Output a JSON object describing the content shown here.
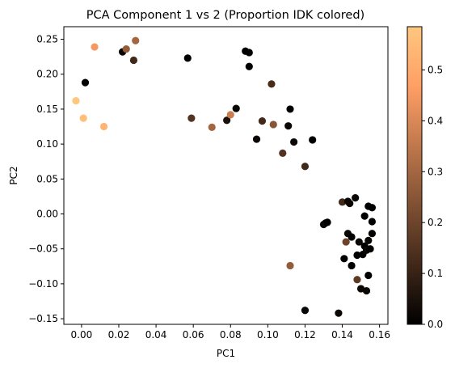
{
  "chart_data": {
    "type": "scatter",
    "title": "PCA Component 1 vs 2 (Proportion IDK colored)",
    "xlabel": "PC1",
    "ylabel": "PC2",
    "xlim": [
      -0.0095,
      0.1645
    ],
    "ylim": [
      -0.158,
      0.268
    ],
    "x_ticks": [
      0.0,
      0.02,
      0.04,
      0.06,
      0.08,
      0.1,
      0.12,
      0.14,
      0.16
    ],
    "x_tick_labels": [
      "0.00",
      "0.02",
      "0.04",
      "0.06",
      "0.08",
      "0.10",
      "0.12",
      "0.14",
      "0.16"
    ],
    "y_ticks": [
      -0.15,
      -0.1,
      -0.05,
      0.0,
      0.05,
      0.1,
      0.15,
      0.2,
      0.25
    ],
    "y_tick_labels": [
      "−0.15",
      "−0.10",
      "−0.05",
      "0.00",
      "0.05",
      "0.10",
      "0.15",
      "0.20",
      "0.25"
    ],
    "grid": false,
    "colormap": "copper",
    "colorbar": {
      "range": [
        0.0,
        0.585
      ],
      "ticks": [
        0.0,
        0.1,
        0.2,
        0.3,
        0.4,
        0.5
      ],
      "tick_labels": [
        "0.0",
        "0.1",
        "0.2",
        "0.3",
        "0.4",
        "0.5"
      ]
    },
    "points": [
      {
        "x": -0.003,
        "y": 0.162,
        "c": 0.58
      },
      {
        "x": 0.001,
        "y": 0.137,
        "c": 0.56
      },
      {
        "x": 0.012,
        "y": 0.125,
        "c": 0.53
      },
      {
        "x": 0.007,
        "y": 0.239,
        "c": 0.45
      },
      {
        "x": 0.002,
        "y": 0.188,
        "c": 0.0
      },
      {
        "x": 0.022,
        "y": 0.232,
        "c": 0.02
      },
      {
        "x": 0.024,
        "y": 0.236,
        "c": 0.27
      },
      {
        "x": 0.028,
        "y": 0.22,
        "c": 0.12
      },
      {
        "x": 0.029,
        "y": 0.248,
        "c": 0.3
      },
      {
        "x": 0.057,
        "y": 0.223,
        "c": 0.0
      },
      {
        "x": 0.059,
        "y": 0.137,
        "c": 0.15
      },
      {
        "x": 0.07,
        "y": 0.124,
        "c": 0.3
      },
      {
        "x": 0.078,
        "y": 0.134,
        "c": 0.05
      },
      {
        "x": 0.08,
        "y": 0.142,
        "c": 0.37
      },
      {
        "x": 0.083,
        "y": 0.151,
        "c": 0.02
      },
      {
        "x": 0.088,
        "y": 0.233,
        "c": 0.0
      },
      {
        "x": 0.09,
        "y": 0.231,
        "c": 0.0
      },
      {
        "x": 0.09,
        "y": 0.211,
        "c": 0.0
      },
      {
        "x": 0.094,
        "y": 0.107,
        "c": 0.02
      },
      {
        "x": 0.097,
        "y": 0.133,
        "c": 0.12
      },
      {
        "x": 0.102,
        "y": 0.186,
        "c": 0.13
      },
      {
        "x": 0.103,
        "y": 0.128,
        "c": 0.25
      },
      {
        "x": 0.108,
        "y": 0.087,
        "c": 0.15
      },
      {
        "x": 0.111,
        "y": 0.126,
        "c": 0.02
      },
      {
        "x": 0.112,
        "y": 0.15,
        "c": 0.0
      },
      {
        "x": 0.114,
        "y": 0.103,
        "c": 0.02
      },
      {
        "x": 0.12,
        "y": 0.068,
        "c": 0.12
      },
      {
        "x": 0.124,
        "y": 0.106,
        "c": 0.0
      },
      {
        "x": 0.112,
        "y": -0.074,
        "c": 0.27
      },
      {
        "x": 0.12,
        "y": -0.138,
        "c": 0.02
      },
      {
        "x": 0.13,
        "y": -0.015,
        "c": 0.02
      },
      {
        "x": 0.131,
        "y": -0.013,
        "c": 0.02
      },
      {
        "x": 0.132,
        "y": -0.012,
        "c": 0.0
      },
      {
        "x": 0.138,
        "y": -0.142,
        "c": 0.02
      },
      {
        "x": 0.14,
        "y": 0.017,
        "c": 0.12
      },
      {
        "x": 0.141,
        "y": -0.064,
        "c": 0.0
      },
      {
        "x": 0.143,
        "y": 0.018,
        "c": 0.02
      },
      {
        "x": 0.144,
        "y": 0.015,
        "c": 0.02
      },
      {
        "x": 0.142,
        "y": -0.04,
        "c": 0.2
      },
      {
        "x": 0.143,
        "y": -0.028,
        "c": 0.02
      },
      {
        "x": 0.145,
        "y": -0.074,
        "c": 0.0
      },
      {
        "x": 0.145,
        "y": -0.033,
        "c": 0.0
      },
      {
        "x": 0.147,
        "y": 0.023,
        "c": 0.02
      },
      {
        "x": 0.148,
        "y": -0.059,
        "c": 0.0
      },
      {
        "x": 0.148,
        "y": -0.094,
        "c": 0.17
      },
      {
        "x": 0.149,
        "y": -0.04,
        "c": 0.02
      },
      {
        "x": 0.15,
        "y": -0.107,
        "c": 0.02
      },
      {
        "x": 0.151,
        "y": -0.058,
        "c": 0.0
      },
      {
        "x": 0.152,
        "y": -0.046,
        "c": 0.0
      },
      {
        "x": 0.152,
        "y": -0.003,
        "c": 0.0
      },
      {
        "x": 0.153,
        "y": -0.052,
        "c": 0.02
      },
      {
        "x": 0.153,
        "y": -0.11,
        "c": 0.02
      },
      {
        "x": 0.154,
        "y": 0.011,
        "c": 0.0
      },
      {
        "x": 0.154,
        "y": -0.038,
        "c": 0.02
      },
      {
        "x": 0.154,
        "y": -0.088,
        "c": 0.0
      },
      {
        "x": 0.155,
        "y": -0.05,
        "c": 0.0
      },
      {
        "x": 0.156,
        "y": -0.011,
        "c": 0.0
      },
      {
        "x": 0.156,
        "y": -0.028,
        "c": 0.0
      },
      {
        "x": 0.156,
        "y": 0.009,
        "c": 0.0
      }
    ]
  }
}
